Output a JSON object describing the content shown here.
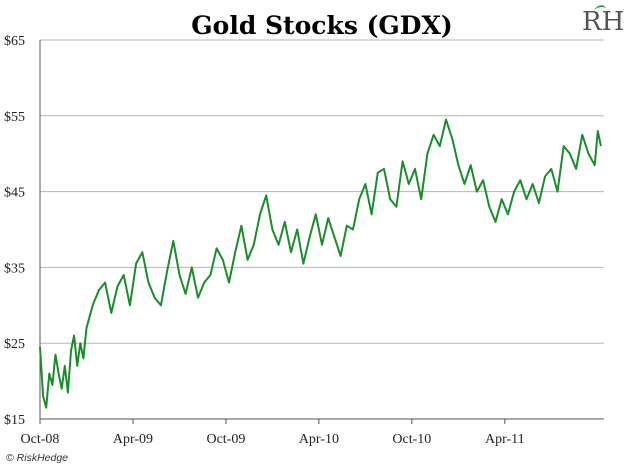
{
  "chart_data": {
    "type": "line",
    "title": "Gold Stocks (GDX)",
    "xlabel": "",
    "ylabel": "",
    "ylim": [
      15,
      65
    ],
    "y_ticks": [
      "$65",
      "$55",
      "$45",
      "$35",
      "$25",
      "$15"
    ],
    "y_tick_values": [
      65,
      55,
      45,
      35,
      25,
      15
    ],
    "x_ticks": [
      "Oct-08",
      "Apr-09",
      "Oct-09",
      "Apr-10",
      "Oct-10",
      "Apr-11"
    ],
    "grid": "horizontal",
    "legend": "none",
    "line_color": "#1a8c2a",
    "series": [
      {
        "x": [
          0,
          0.2,
          0.4,
          0.6,
          0.8,
          1,
          1.2,
          1.4,
          1.6,
          1.8,
          2,
          2.2,
          2.4,
          2.6,
          2.8,
          3,
          3.4,
          3.8,
          4.2,
          4.6,
          5,
          5.4,
          5.8,
          6.2,
          6.6,
          7,
          7.4,
          7.8,
          8.2,
          8.6,
          9,
          9.4,
          9.8,
          10.2,
          10.6,
          11,
          11.4,
          11.8,
          12.2,
          12.6,
          13,
          13.4,
          13.8,
          14.2,
          14.6,
          15,
          15.4,
          15.8,
          16.2,
          16.6,
          17,
          17.4,
          17.8,
          18.2,
          18.6,
          19,
          19.4,
          19.8,
          20.2,
          20.6,
          21,
          21.4,
          21.8,
          22.2,
          22.6,
          23,
          23.4,
          23.8,
          24.2,
          24.6,
          25,
          25.4,
          25.8,
          26.2,
          26.6,
          27,
          27.4,
          27.8,
          28.2,
          28.6,
          29,
          29.4,
          29.8,
          30.2,
          30.6,
          31,
          31.4,
          31.8,
          32.2,
          32.6,
          33,
          33.4,
          33.8,
          34.2,
          34.6,
          35,
          35.4,
          35.8,
          36,
          36.2
        ],
        "values": [
          24.5,
          18,
          16.5,
          21,
          19.5,
          23.5,
          21,
          19,
          22,
          18.5,
          24,
          26,
          22,
          25,
          23,
          27,
          30,
          32,
          33,
          29,
          32.5,
          34,
          30,
          35.5,
          37,
          33,
          31,
          30,
          34.5,
          38.5,
          34,
          31.5,
          35,
          31,
          33,
          34,
          37.5,
          36,
          33,
          37,
          40.5,
          36,
          38,
          42,
          44.5,
          40,
          38,
          41,
          37,
          40,
          35.5,
          39,
          42,
          38,
          41.5,
          39,
          36.5,
          40.5,
          40,
          44,
          46,
          42,
          47.5,
          48,
          44,
          43,
          49,
          46,
          48,
          44,
          50,
          52.5,
          51,
          54.5,
          52,
          48.5,
          46,
          48.5,
          45,
          46.5,
          43,
          41,
          44,
          42,
          45,
          46.5,
          44,
          46,
          43.5,
          47,
          48,
          45,
          51,
          50,
          48,
          52.5,
          50,
          48.5,
          53,
          51
        ]
      }
    ],
    "logo_text": "RH",
    "footer": "© RiskHedge"
  }
}
